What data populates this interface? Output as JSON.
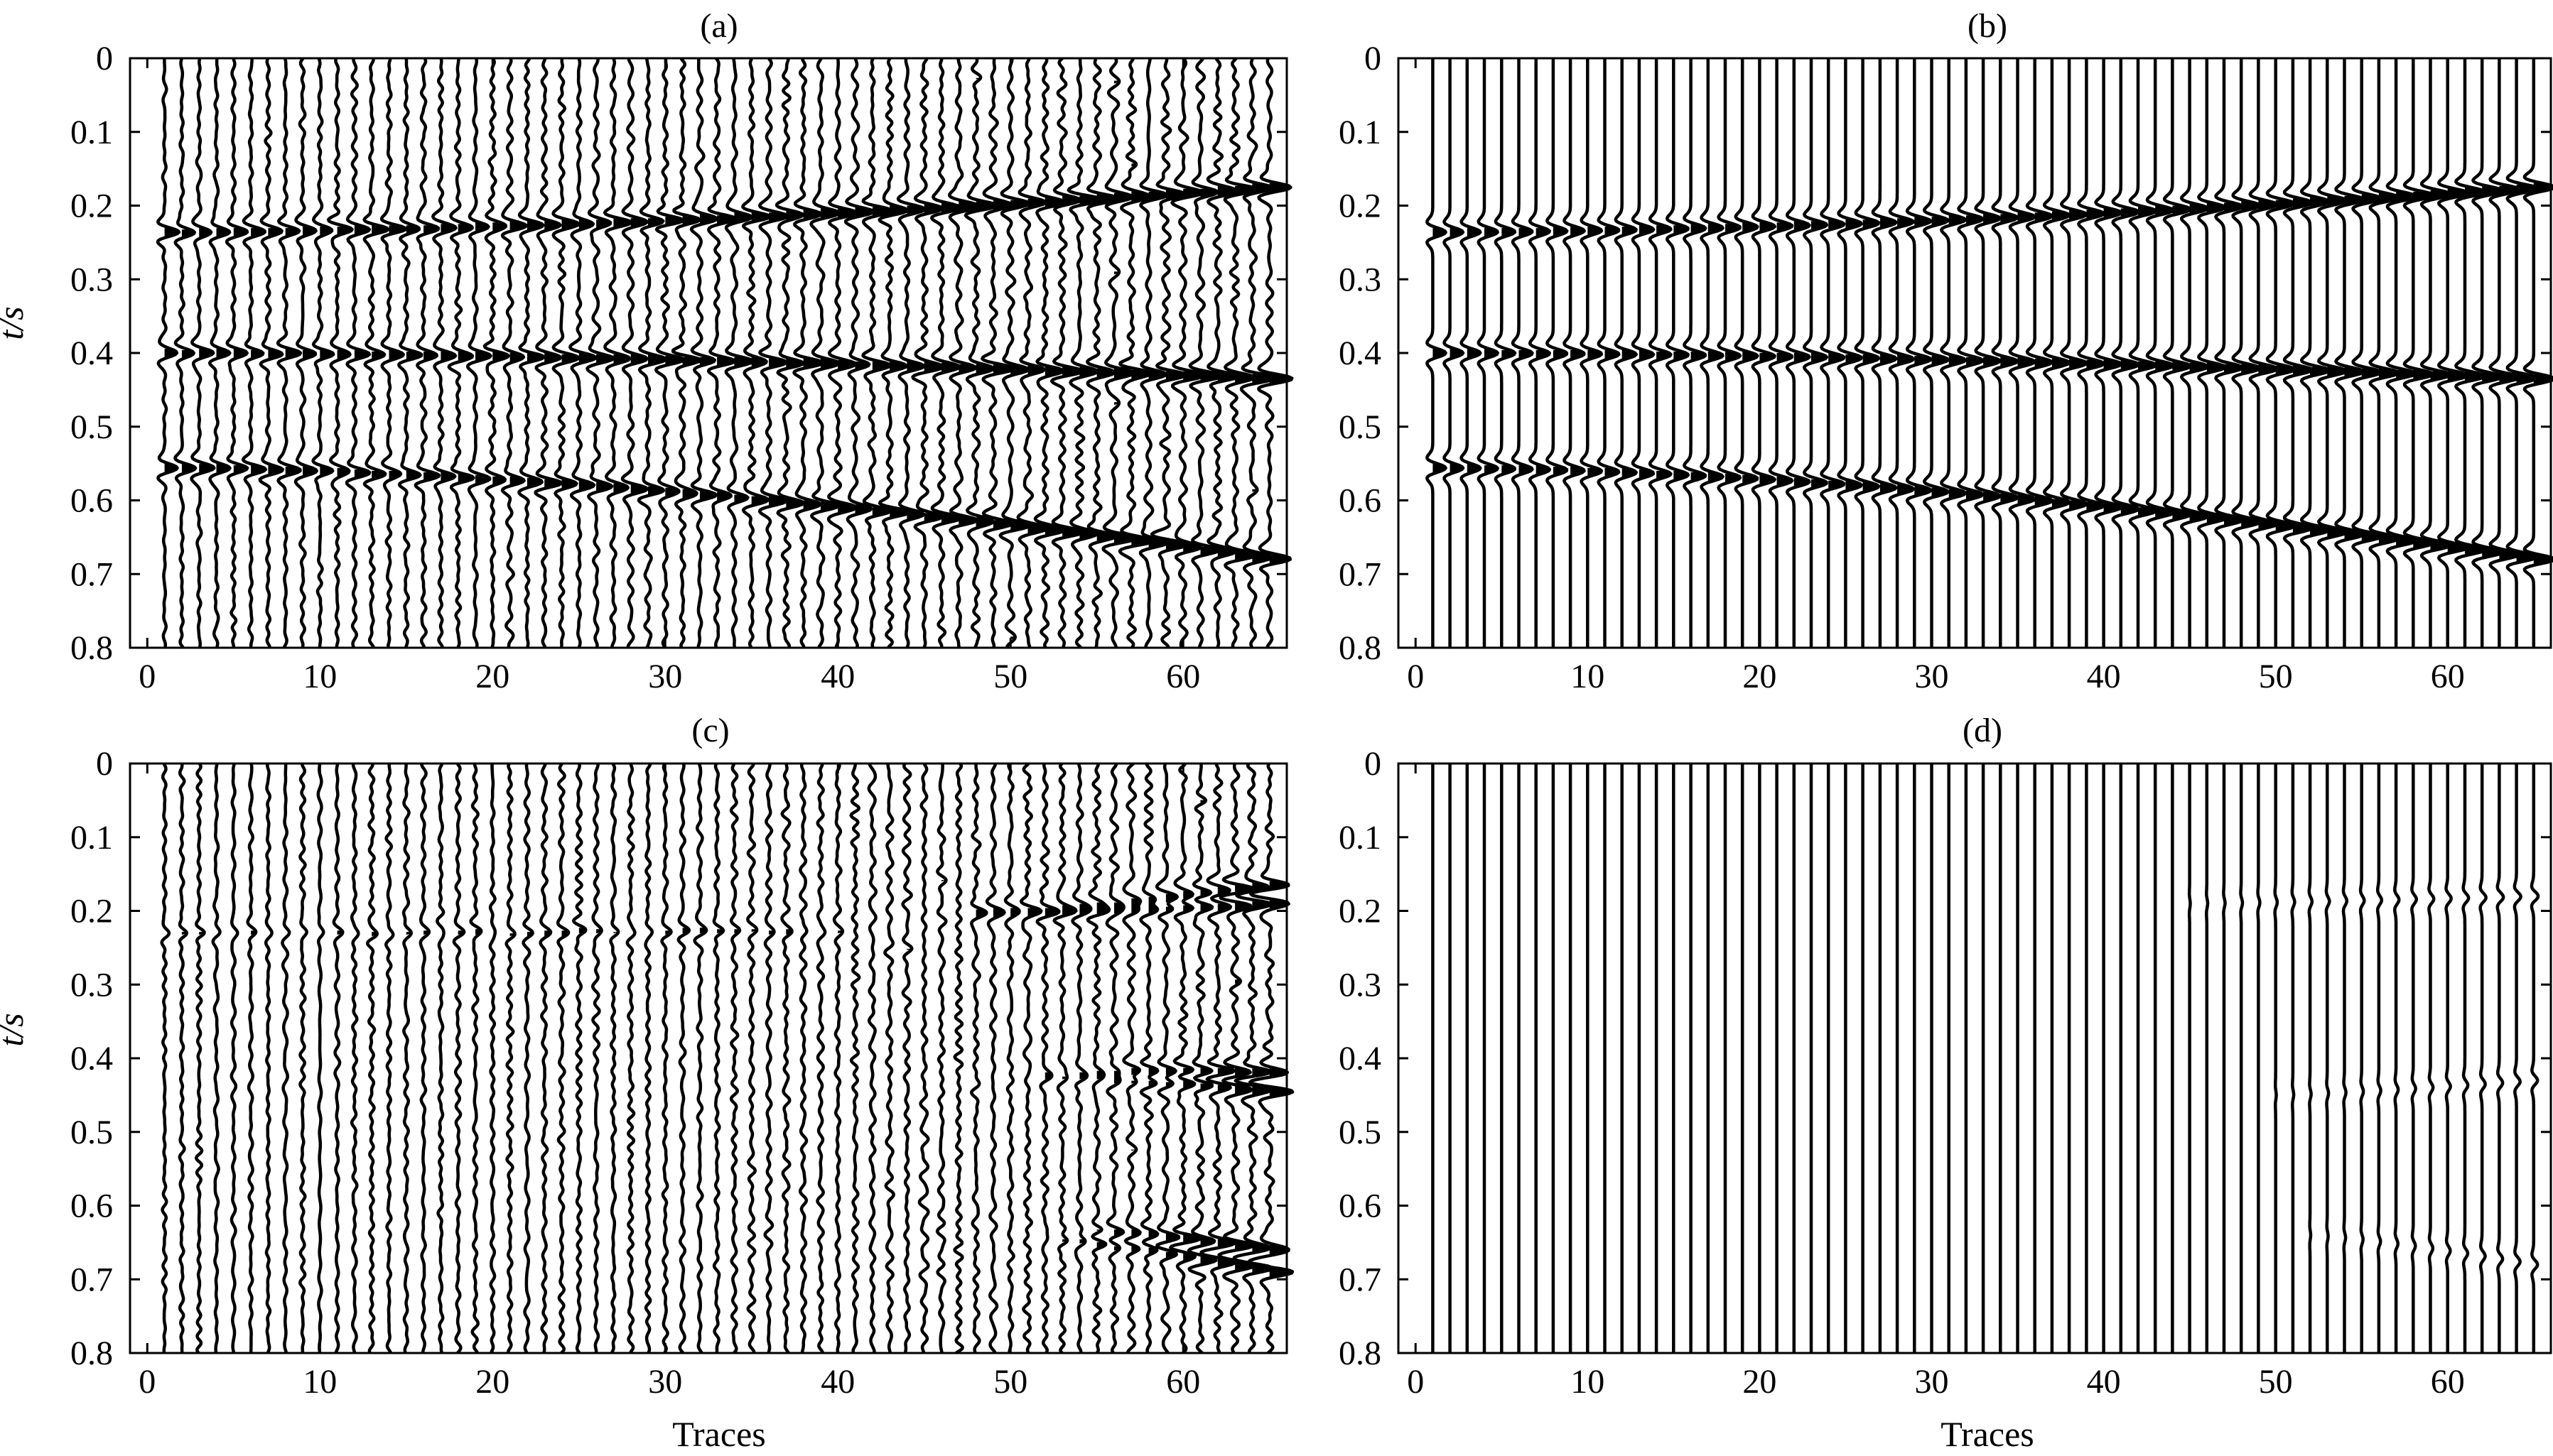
{
  "chart_data": [
    {
      "type": "seismic-wiggle",
      "title": "(a)",
      "xlabel": "",
      "ylabel": "t/s",
      "xlim": [
        -1,
        66
      ],
      "ylim": [
        0,
        0.8
      ],
      "xticks": [
        "0",
        "10",
        "20",
        "30",
        "40",
        "50",
        "60"
      ],
      "yticks": [
        "0",
        "0.1",
        "0.2",
        "0.3",
        "0.4",
        "0.5",
        "0.6",
        "0.7",
        "0.8"
      ],
      "trace_count": 65,
      "noise_level": 0.22,
      "events": [
        {
          "t0": 0.236,
          "t_end": 0.175,
          "start_trace": 1,
          "amp_start": 1.0,
          "amp_end": 1.6,
          "curvature": 0.7
        },
        {
          "t0": 0.4,
          "t_end": 0.435,
          "start_trace": 1,
          "amp_start": 1.0,
          "amp_end": 1.6,
          "curvature": 0.7
        },
        {
          "t0": 0.556,
          "t_end": 0.68,
          "start_trace": 1,
          "amp_start": 1.0,
          "amp_end": 1.6,
          "curvature": 0.7
        }
      ]
    },
    {
      "type": "seismic-wiggle",
      "title": "(b)",
      "xlabel": "",
      "ylabel": "",
      "xlim": [
        -1,
        66
      ],
      "ylim": [
        0,
        0.8
      ],
      "xticks": [
        "0",
        "10",
        "20",
        "30",
        "40",
        "50",
        "60"
      ],
      "yticks": [
        "0",
        "0.1",
        "0.2",
        "0.3",
        "0.4",
        "0.5",
        "0.6",
        "0.7",
        "0.8"
      ],
      "trace_count": 65,
      "noise_level": 0.0,
      "events": [
        {
          "t0": 0.236,
          "t_end": 0.175,
          "start_trace": 1,
          "amp_start": 1.0,
          "amp_end": 1.6,
          "curvature": 0.7
        },
        {
          "t0": 0.4,
          "t_end": 0.435,
          "start_trace": 1,
          "amp_start": 1.0,
          "amp_end": 1.6,
          "curvature": 0.7
        },
        {
          "t0": 0.556,
          "t_end": 0.68,
          "start_trace": 1,
          "amp_start": 1.0,
          "amp_end": 1.6,
          "curvature": 0.7
        }
      ]
    },
    {
      "type": "seismic-wiggle",
      "title": "(c)",
      "xlabel": "Traces",
      "ylabel": "t/s",
      "xlim": [
        -1,
        66
      ],
      "ylim": [
        0,
        0.8
      ],
      "xticks": [
        "0",
        "10",
        "20",
        "30",
        "40",
        "50",
        "60"
      ],
      "yticks": [
        "0",
        "0.1",
        "0.2",
        "0.3",
        "0.4",
        "0.5",
        "0.6",
        "0.7",
        "0.8"
      ],
      "trace_count": 65,
      "noise_level": 0.22,
      "events": [
        {
          "t0": 0.23,
          "t_end": 0.225,
          "start_trace": 1,
          "end_trace": 40,
          "amp_start": 0.3,
          "amp_end": 0.5,
          "curvature": 0.0
        },
        {
          "t0": 0.2,
          "t_end": 0.165,
          "start_trace": 48,
          "amp_start": 0.4,
          "amp_end": 1.6,
          "curvature": 0.5
        },
        {
          "t0": 0.205,
          "t_end": 0.19,
          "start_trace": 48,
          "amp_start": 0.4,
          "amp_end": 1.6,
          "curvature": 0.5
        },
        {
          "t0": 0.415,
          "t_end": 0.42,
          "start_trace": 52,
          "amp_start": 0.4,
          "amp_end": 1.6,
          "curvature": 0.3
        },
        {
          "t0": 0.425,
          "t_end": 0.445,
          "start_trace": 52,
          "amp_start": 0.4,
          "amp_end": 1.6,
          "curvature": 0.3
        },
        {
          "t0": 0.63,
          "t_end": 0.66,
          "start_trace": 52,
          "amp_start": 0.4,
          "amp_end": 1.6,
          "curvature": 0.3
        },
        {
          "t0": 0.645,
          "t_end": 0.69,
          "start_trace": 52,
          "amp_start": 0.4,
          "amp_end": 1.6,
          "curvature": 0.3
        }
      ]
    },
    {
      "type": "seismic-wiggle",
      "title": "(d)",
      "xlabel": "Traces",
      "ylabel": "",
      "xlim": [
        -1,
        66
      ],
      "ylim": [
        0,
        0.8
      ],
      "xticks": [
        "0",
        "10",
        "20",
        "30",
        "40",
        "50",
        "60"
      ],
      "yticks": [
        "0",
        "0.1",
        "0.2",
        "0.3",
        "0.4",
        "0.5",
        "0.6",
        "0.7",
        "0.8"
      ],
      "trace_count": 65,
      "noise_level": 0.0,
      "events": [
        {
          "t0": 0.19,
          "t_end": 0.18,
          "start_trace": 45,
          "amp_start": 0.05,
          "amp_end": 0.35,
          "curvature": 0.3
        },
        {
          "t0": 0.45,
          "t_end": 0.43,
          "start_trace": 50,
          "amp_start": 0.05,
          "amp_end": 0.3,
          "curvature": 0.3
        },
        {
          "t0": 0.64,
          "t_end": 0.68,
          "start_trace": 52,
          "amp_start": 0.05,
          "amp_end": 0.3,
          "curvature": 0.3
        }
      ]
    }
  ]
}
